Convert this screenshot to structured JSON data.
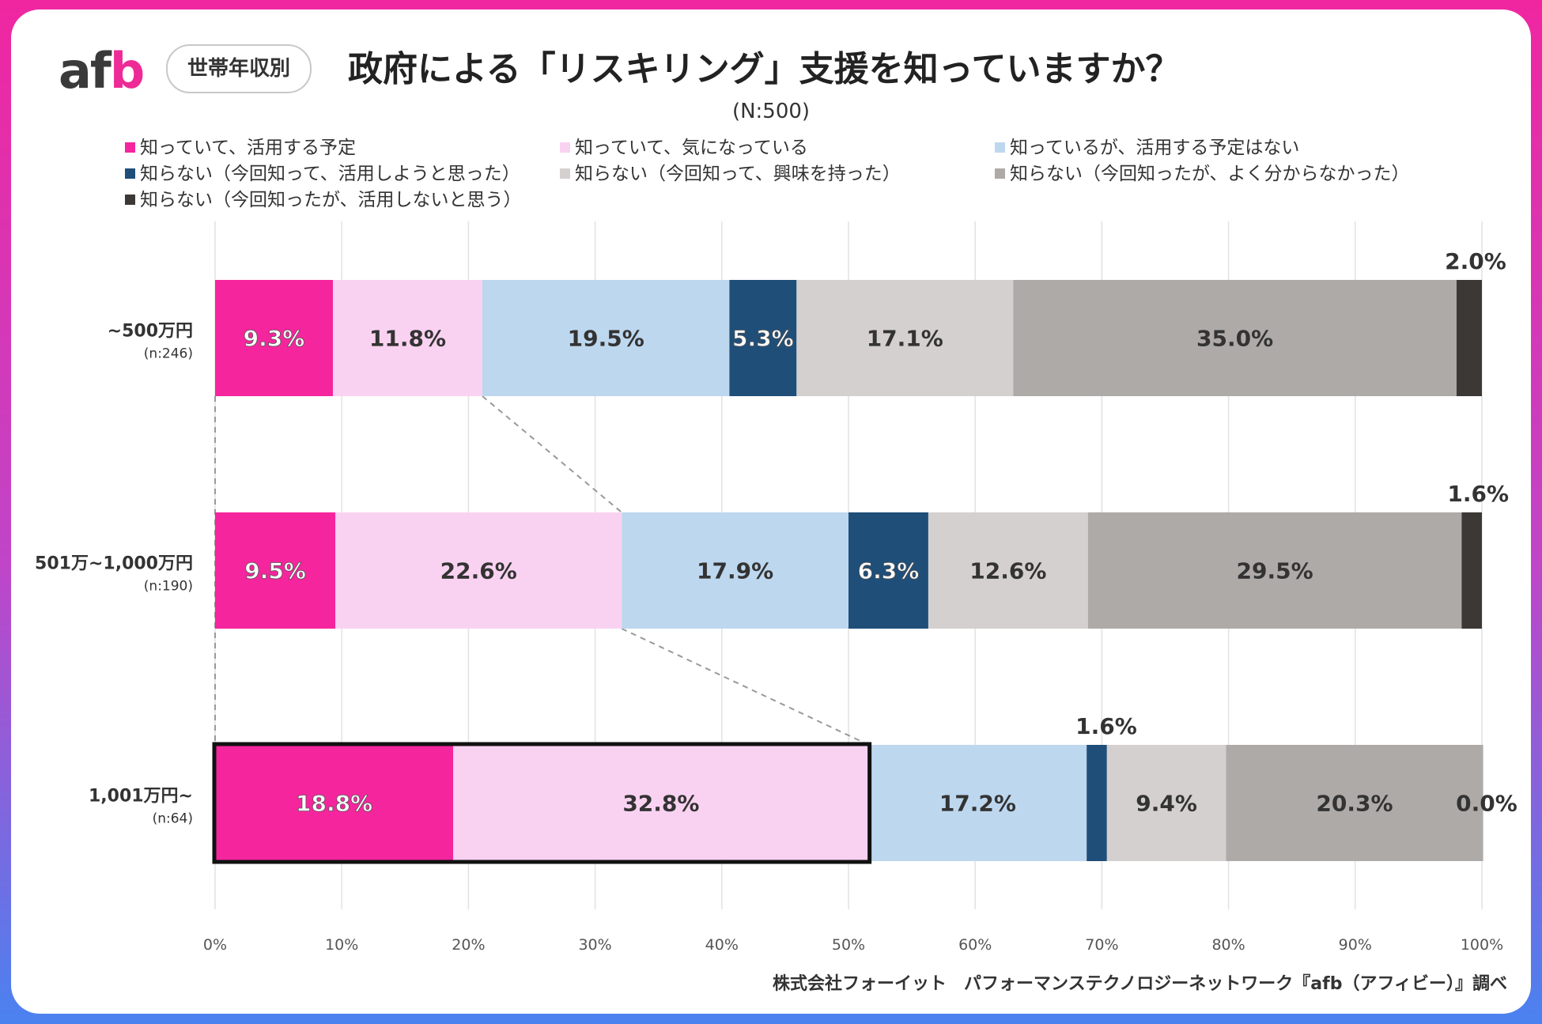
{
  "header": {
    "logo_a": "af",
    "logo_b": "b",
    "badge": "世帯年収別",
    "title": "政府による「リスキリング」支援を知っていますか？",
    "subtitle": "(N:500)"
  },
  "colors": [
    "#f5259d",
    "#fad2f1",
    "#bdd7ee",
    "#1f4e79",
    "#d3d0cf",
    "#aeaaa7",
    "#3b3836"
  ],
  "legend": [
    "知っていて、活用する予定",
    "知っていて、気になっている",
    "知っているが、活用する予定はない",
    "知らない（今回知って、活用しようと思った）",
    "知らない（今回知って、興味を持った）",
    "知らない（今回知ったが、よく分からなかった）",
    "知らない（今回知ったが、活用しないと思う）"
  ],
  "chart_data": {
    "type": "bar",
    "orientation": "horizontal-stacked-100",
    "categories": [
      "~500万円",
      "501万~1,000万円",
      "1,001万円~"
    ],
    "category_counts": [
      "(n:246)",
      "(n:190)",
      "(n:64)"
    ],
    "series": [
      {
        "name": "知っていて、活用する予定",
        "values": [
          9.3,
          9.5,
          18.8
        ]
      },
      {
        "name": "知っていて、気になっている",
        "values": [
          11.8,
          22.6,
          32.8
        ]
      },
      {
        "name": "知っているが、活用する予定はない",
        "values": [
          19.5,
          17.9,
          17.2
        ]
      },
      {
        "name": "知らない（今回知って、活用しようと思った）",
        "values": [
          5.3,
          6.3,
          1.6
        ]
      },
      {
        "name": "知らない（今回知って、興味を持った）",
        "values": [
          17.1,
          12.6,
          9.4
        ]
      },
      {
        "name": "知らない（今回知ったが、よく分からなかった）",
        "values": [
          35.0,
          29.5,
          20.3
        ]
      },
      {
        "name": "知らない（今回知ったが、活用しないと思う）",
        "values": [
          2.0,
          1.6,
          0.0
        ]
      }
    ],
    "xticks": [
      "0%",
      "10%",
      "20%",
      "30%",
      "40%",
      "50%",
      "60%",
      "70%",
      "80%",
      "90%",
      "100%"
    ],
    "xlim": [
      0,
      100
    ],
    "highlight": {
      "category": "1,001万円~",
      "series_range": [
        0,
        1
      ]
    },
    "legend_position": "top"
  },
  "footer": {
    "credit": "株式会社フォーイット　パフォーマンステクノロジーネットワーク『afb（アフィビー）』調べ"
  }
}
